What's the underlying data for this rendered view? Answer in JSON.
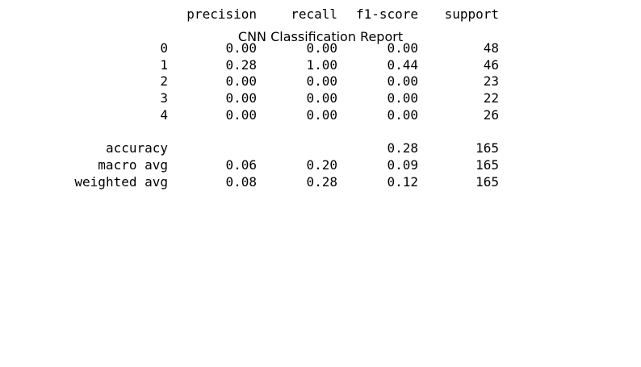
{
  "title": "CNN Classification Report",
  "header": {
    "precision": "precision",
    "recall": "recall",
    "f1": "f1-score",
    "support": "support"
  },
  "rows": [
    {
      "label": "0",
      "precision": "0.00",
      "recall": "0.00",
      "f1": "0.00",
      "support": "48"
    },
    {
      "label": "1",
      "precision": "0.28",
      "recall": "1.00",
      "f1": "0.44",
      "support": "46"
    },
    {
      "label": "2",
      "precision": "0.00",
      "recall": "0.00",
      "f1": "0.00",
      "support": "23"
    },
    {
      "label": "3",
      "precision": "0.00",
      "recall": "0.00",
      "f1": "0.00",
      "support": "22"
    },
    {
      "label": "4",
      "precision": "0.00",
      "recall": "0.00",
      "f1": "0.00",
      "support": "26"
    }
  ],
  "summary": [
    {
      "label": "accuracy",
      "precision": "",
      "recall": "",
      "f1": "0.28",
      "support": "165"
    },
    {
      "label": "macro avg",
      "precision": "0.06",
      "recall": "0.20",
      "f1": "0.09",
      "support": "165"
    },
    {
      "label": "weighted avg",
      "precision": "0.08",
      "recall": "0.28",
      "f1": "0.12",
      "support": "165"
    }
  ]
}
